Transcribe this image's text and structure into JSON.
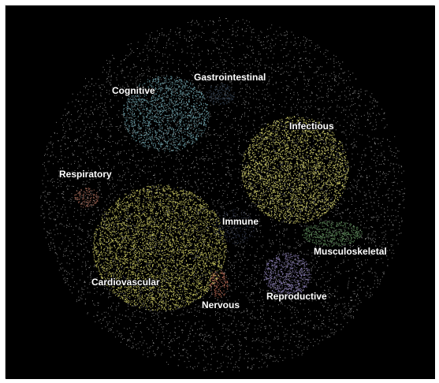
{
  "figure": {
    "background_color": "#000000",
    "node_color": "#c8c8c8",
    "clusters": [
      {
        "key": "cognitive",
        "label": "Cognitive",
        "color": "#6fa3ad"
      },
      {
        "key": "gastrointestinal",
        "label": "Gastrointestinal",
        "color": "#3b4a5c"
      },
      {
        "key": "infectious",
        "label": "Infectious",
        "color": "#d6d46e"
      },
      {
        "key": "respiratory",
        "label": "Respiratory",
        "color": "#a86a58"
      },
      {
        "key": "immune",
        "label": "Immune",
        "color": "#2a3040"
      },
      {
        "key": "cardiovascular",
        "label": "Cardiovascular",
        "color": "#c9c661"
      },
      {
        "key": "musculoskeletal",
        "label": "Musculoskeletal",
        "color": "#5d8a5a"
      },
      {
        "key": "nervous",
        "label": "Nervous",
        "color": "#c0705a"
      },
      {
        "key": "reproductive",
        "label": "Reproductive",
        "color": "#8c7fb5"
      }
    ]
  }
}
